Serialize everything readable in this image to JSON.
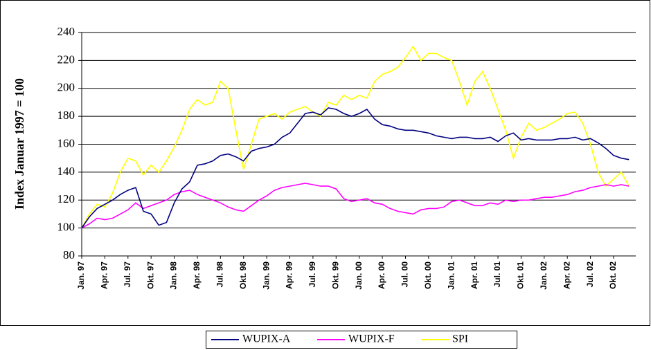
{
  "chart_data": {
    "type": "line",
    "ylabel": "Index Januar 1997 = 100",
    "categories": [
      "Jan. 97",
      null,
      null,
      "Apr. 97",
      null,
      null,
      "Jul. 97",
      null,
      null,
      "Okt. 97",
      null,
      null,
      "Jan. 98",
      null,
      null,
      "Apr. 98",
      null,
      null,
      "Jul. 98",
      null,
      null,
      "Okt. 98",
      null,
      null,
      "Jan. 99",
      null,
      null,
      "Apr. 99",
      null,
      null,
      "Jul. 99",
      null,
      null,
      "Okt. 99",
      null,
      null,
      "Jan. 00",
      null,
      null,
      "Apr. 00",
      null,
      null,
      "Jul. 00",
      null,
      null,
      "Okt. 00",
      null,
      null,
      "Jan. 01",
      null,
      null,
      "Apr. 01",
      null,
      null,
      "Jul. 01",
      null,
      null,
      "Okt. 01",
      null,
      null,
      "Jan. 02",
      null,
      null,
      "Apr. 02",
      null,
      null,
      "Jul. 02",
      null,
      null,
      "Okt. 02",
      null,
      null
    ],
    "series": [
      {
        "name": "WUPIX-A",
        "color": "#000080",
        "values": [
          100,
          108,
          114,
          117,
          120,
          124,
          127,
          129,
          112,
          110,
          102,
          104,
          118,
          128,
          133,
          145,
          146,
          148,
          152,
          153,
          151,
          148,
          155,
          157,
          158,
          160,
          165,
          168,
          175,
          182,
          183,
          181,
          186,
          185,
          182,
          180,
          182,
          185,
          178,
          174,
          173,
          171,
          170,
          170,
          169,
          168,
          166,
          165,
          164,
          165,
          165,
          164,
          164,
          165,
          162,
          166,
          168,
          163,
          164,
          163,
          163,
          163,
          164,
          164,
          165,
          163,
          164,
          161,
          157,
          152,
          150,
          149
        ]
      },
      {
        "name": "WUPIX-F",
        "color": "#ff00ff",
        "values": [
          100,
          103,
          107,
          106,
          107,
          110,
          113,
          118,
          114,
          116,
          118,
          120,
          124,
          126,
          127,
          124,
          122,
          120,
          118,
          115,
          113,
          112,
          116,
          120,
          123,
          127,
          129,
          130,
          131,
          132,
          131,
          130,
          130,
          128,
          121,
          119,
          120,
          121,
          118,
          117,
          114,
          112,
          111,
          110,
          113,
          114,
          114,
          115,
          119,
          120,
          118,
          116,
          116,
          118,
          117,
          120,
          119,
          120,
          120,
          121,
          122,
          122,
          123,
          124,
          126,
          127,
          129,
          130,
          131,
          130,
          131,
          130
        ]
      },
      {
        "name": "SPI",
        "color": "#ffff00",
        "values": [
          100,
          110,
          117,
          115,
          125,
          140,
          150,
          148,
          138,
          145,
          140,
          148,
          158,
          170,
          185,
          192,
          188,
          190,
          205,
          200,
          170,
          142,
          160,
          178,
          180,
          182,
          178,
          183,
          185,
          187,
          183,
          180,
          190,
          188,
          195,
          192,
          195,
          193,
          205,
          210,
          212,
          215,
          222,
          230,
          220,
          225,
          225,
          222,
          220,
          205,
          188,
          205,
          212,
          200,
          185,
          170,
          150,
          165,
          175,
          170,
          172,
          175,
          178,
          182,
          183,
          175,
          160,
          140,
          130,
          135,
          140,
          130
        ]
      }
    ],
    "ylim": [
      80,
      240
    ],
    "yticks": [
      80,
      100,
      120,
      140,
      160,
      180,
      200,
      220,
      240
    ],
    "grid": true
  }
}
